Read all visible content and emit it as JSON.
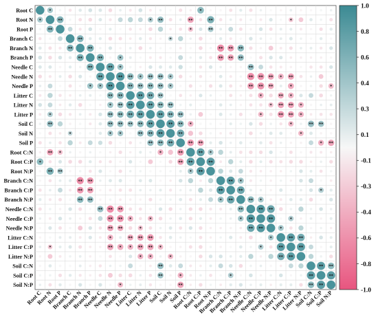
{
  "chart_data": {
    "type": "heatmap",
    "style": "circle-correlogram",
    "grid": true,
    "legend": "right",
    "variables": [
      "Root C",
      "Root N",
      "Root P",
      "Branch C",
      "Branch N",
      "Branch P",
      "Needle C",
      "Needle N",
      "Needle P",
      "Litter C",
      "Litter N",
      "Litter P",
      "Soil C",
      "Soil N",
      "Soil P",
      "Root C:N",
      "Root C:P",
      "Root N:P",
      "Branch C:N",
      "Branch C:P",
      "Branch N:P",
      "Needle C:N",
      "Needle C:P",
      "Needle N:P",
      "Litter C:N",
      "Litter C:P",
      "Litter N:P",
      "Soil C:N",
      "Soil C:P",
      "Soil N:P"
    ],
    "colorbar": {
      "ticks": [
        1.0,
        0.8,
        0.6,
        0.4,
        0.3,
        0.1,
        -0.1,
        -0.3,
        -0.4,
        -0.6,
        -0.8,
        -1.0
      ],
      "tick_labels": [
        "1.0",
        "0.8",
        "0.6",
        "0.4",
        "0.3",
        "0.1",
        "-0.1",
        "-0.3",
        "-0.4",
        "-0.6",
        "-0.8",
        "-1.0"
      ],
      "color_positive": "#3b8a93",
      "color_neutral": "#f7f7f7",
      "color_negative": "#e8557f"
    },
    "significance_marks": [
      "*",
      "**"
    ],
    "correlations": [
      {
        "a": 0,
        "b": 1,
        "r": 0.45,
        "sig": "*"
      },
      {
        "a": 0,
        "b": 16,
        "r": 0.6,
        "sig": "*"
      },
      {
        "a": 0,
        "b": 5,
        "r": 0.2,
        "sig": ""
      },
      {
        "a": 1,
        "b": 2,
        "r": 0.65,
        "sig": "**"
      },
      {
        "a": 1,
        "b": 12,
        "r": 0.55,
        "sig": "**"
      },
      {
        "a": 1,
        "b": 11,
        "r": 0.4,
        "sig": "*"
      },
      {
        "a": 1,
        "b": 15,
        "r": -0.55,
        "sig": "**"
      },
      {
        "a": 1,
        "b": 17,
        "r": 0.7,
        "sig": "**"
      },
      {
        "a": 1,
        "b": 9,
        "r": 0.35,
        "sig": ""
      },
      {
        "a": 1,
        "b": 8,
        "r": 0.3,
        "sig": ""
      },
      {
        "a": 1,
        "b": 10,
        "r": 0.3,
        "sig": ""
      },
      {
        "a": 1,
        "b": 25,
        "r": -0.3,
        "sig": "*"
      },
      {
        "a": 1,
        "b": 26,
        "r": -0.3,
        "sig": ""
      },
      {
        "a": 2,
        "b": 17,
        "r": 0.45,
        "sig": "**"
      },
      {
        "a": 2,
        "b": 12,
        "r": 0.35,
        "sig": ""
      },
      {
        "a": 2,
        "b": 15,
        "r": -0.35,
        "sig": "*"
      },
      {
        "a": 2,
        "b": 3,
        "r": 0.3,
        "sig": ""
      },
      {
        "a": 2,
        "b": 19,
        "r": 0.3,
        "sig": ""
      },
      {
        "a": 3,
        "b": 4,
        "r": 0.65,
        "sig": "**"
      },
      {
        "a": 3,
        "b": 14,
        "r": 0.35,
        "sig": ""
      },
      {
        "a": 3,
        "b": 13,
        "r": 0.3,
        "sig": "*"
      },
      {
        "a": 4,
        "b": 5,
        "r": 0.7,
        "sig": "**"
      },
      {
        "a": 4,
        "b": 18,
        "r": -0.7,
        "sig": "**"
      },
      {
        "a": 4,
        "b": 19,
        "r": -0.6,
        "sig": "**"
      },
      {
        "a": 4,
        "b": 20,
        "r": 0.6,
        "sig": "**"
      },
      {
        "a": 4,
        "b": 23,
        "r": -0.3,
        "sig": ""
      },
      {
        "a": 5,
        "b": 6,
        "r": 0.7,
        "sig": "**"
      },
      {
        "a": 5,
        "b": 8,
        "r": 0.5,
        "sig": "*"
      },
      {
        "a": 5,
        "b": 14,
        "r": 0.3,
        "sig": ""
      },
      {
        "a": 5,
        "b": 18,
        "r": -0.6,
        "sig": "**"
      },
      {
        "a": 5,
        "b": 19,
        "r": -0.55,
        "sig": "**"
      },
      {
        "a": 5,
        "b": 20,
        "r": 0.55,
        "sig": "**"
      },
      {
        "a": 6,
        "b": 7,
        "r": 0.85,
        "sig": "**"
      },
      {
        "a": 6,
        "b": 8,
        "r": 0.5,
        "sig": "*"
      },
      {
        "a": 6,
        "b": 21,
        "r": 0.55,
        "sig": "**"
      },
      {
        "a": 6,
        "b": 22,
        "r": 0.3,
        "sig": ""
      },
      {
        "a": 6,
        "b": 14,
        "r": 0.25,
        "sig": ""
      },
      {
        "a": 7,
        "b": 8,
        "r": 0.95,
        "sig": "**"
      },
      {
        "a": 7,
        "b": 9,
        "r": 0.6,
        "sig": "**"
      },
      {
        "a": 7,
        "b": 11,
        "r": 0.55,
        "sig": "**"
      },
      {
        "a": 7,
        "b": 12,
        "r": 0.55,
        "sig": "**"
      },
      {
        "a": 7,
        "b": 13,
        "r": 0.45,
        "sig": "*"
      },
      {
        "a": 7,
        "b": 10,
        "r": 0.5,
        "sig": "*"
      },
      {
        "a": 7,
        "b": 21,
        "r": -0.7,
        "sig": "**"
      },
      {
        "a": 7,
        "b": 22,
        "r": -0.65,
        "sig": "**"
      },
      {
        "a": 7,
        "b": 23,
        "r": -0.55,
        "sig": "**"
      },
      {
        "a": 7,
        "b": 24,
        "r": -0.45,
        "sig": "*"
      },
      {
        "a": 7,
        "b": 25,
        "r": -0.55,
        "sig": "**"
      },
      {
        "a": 7,
        "b": 28,
        "r": -0.3,
        "sig": ""
      },
      {
        "a": 8,
        "b": 9,
        "r": 0.65,
        "sig": "**"
      },
      {
        "a": 8,
        "b": 10,
        "r": 0.55,
        "sig": "**"
      },
      {
        "a": 8,
        "b": 11,
        "r": 0.6,
        "sig": "**"
      },
      {
        "a": 8,
        "b": 12,
        "r": 0.55,
        "sig": "**"
      },
      {
        "a": 8,
        "b": 13,
        "r": 0.45,
        "sig": "*"
      },
      {
        "a": 8,
        "b": 21,
        "r": -0.6,
        "sig": "**"
      },
      {
        "a": 8,
        "b": 22,
        "r": -0.65,
        "sig": "**"
      },
      {
        "a": 8,
        "b": 23,
        "r": -0.5,
        "sig": "**"
      },
      {
        "a": 8,
        "b": 25,
        "r": -0.5,
        "sig": "*"
      },
      {
        "a": 8,
        "b": 29,
        "r": -0.4,
        "sig": "*"
      },
      {
        "a": 9,
        "b": 10,
        "r": 0.9,
        "sig": "**"
      },
      {
        "a": 9,
        "b": 11,
        "r": 0.75,
        "sig": "**"
      },
      {
        "a": 9,
        "b": 12,
        "r": 0.5,
        "sig": "**"
      },
      {
        "a": 9,
        "b": 22,
        "r": -0.45,
        "sig": "*"
      },
      {
        "a": 9,
        "b": 24,
        "r": -0.5,
        "sig": "**"
      },
      {
        "a": 9,
        "b": 25,
        "r": -0.45,
        "sig": "*"
      },
      {
        "a": 9,
        "b": 27,
        "r": 0.3,
        "sig": ""
      },
      {
        "a": 10,
        "b": 11,
        "r": 0.85,
        "sig": "**"
      },
      {
        "a": 10,
        "b": 12,
        "r": 0.6,
        "sig": "**"
      },
      {
        "a": 10,
        "b": 13,
        "r": 0.55,
        "sig": "**"
      },
      {
        "a": 10,
        "b": 23,
        "r": -0.35,
        "sig": "*"
      },
      {
        "a": 10,
        "b": 24,
        "r": -0.55,
        "sig": "**"
      },
      {
        "a": 10,
        "b": 25,
        "r": -0.55,
        "sig": "**"
      },
      {
        "a": 10,
        "b": 26,
        "r": -0.45,
        "sig": "*"
      },
      {
        "a": 11,
        "b": 12,
        "r": 0.85,
        "sig": "**"
      },
      {
        "a": 11,
        "b": 13,
        "r": 0.65,
        "sig": "**"
      },
      {
        "a": 11,
        "b": 14,
        "r": 0.55,
        "sig": "**"
      },
      {
        "a": 11,
        "b": 24,
        "r": -0.6,
        "sig": "**"
      },
      {
        "a": 11,
        "b": 25,
        "r": -0.55,
        "sig": "**"
      },
      {
        "a": 11,
        "b": 26,
        "r": -0.45,
        "sig": "*"
      },
      {
        "a": 11,
        "b": 22,
        "r": -0.4,
        "sig": "*"
      },
      {
        "a": 11,
        "b": 16,
        "r": -0.3,
        "sig": ""
      },
      {
        "a": 12,
        "b": 13,
        "r": 0.9,
        "sig": "**"
      },
      {
        "a": 12,
        "b": 14,
        "r": 0.6,
        "sig": "**"
      },
      {
        "a": 12,
        "b": 15,
        "r": -0.45,
        "sig": "*"
      },
      {
        "a": 12,
        "b": 27,
        "r": 0.55,
        "sig": "**"
      },
      {
        "a": 12,
        "b": 28,
        "r": 0.5,
        "sig": "**"
      },
      {
        "a": 12,
        "b": 25,
        "r": -0.4,
        "sig": "*"
      },
      {
        "a": 13,
        "b": 14,
        "r": 0.75,
        "sig": "**"
      },
      {
        "a": 13,
        "b": 26,
        "r": -0.4,
        "sig": "*"
      },
      {
        "a": 13,
        "b": 15,
        "r": -0.35,
        "sig": ""
      },
      {
        "a": 14,
        "b": 15,
        "r": -0.6,
        "sig": "**"
      },
      {
        "a": 14,
        "b": 16,
        "r": -0.55,
        "sig": "**"
      },
      {
        "a": 14,
        "b": 28,
        "r": -0.45,
        "sig": "*"
      },
      {
        "a": 14,
        "b": 29,
        "r": -0.55,
        "sig": "**"
      },
      {
        "a": 14,
        "b": 27,
        "r": 0.3,
        "sig": ""
      },
      {
        "a": 15,
        "b": 16,
        "r": 0.85,
        "sig": "**"
      },
      {
        "a": 15,
        "b": 17,
        "r": 0.45,
        "sig": "*"
      },
      {
        "a": 15,
        "b": 18,
        "r": 0.35,
        "sig": ""
      },
      {
        "a": 16,
        "b": 17,
        "r": 0.9,
        "sig": "**"
      },
      {
        "a": 16,
        "b": 19,
        "r": 0.35,
        "sig": ""
      },
      {
        "a": 17,
        "b": 18,
        "r": 0.35,
        "sig": ""
      },
      {
        "a": 17,
        "b": 20,
        "r": 0.3,
        "sig": ""
      },
      {
        "a": 18,
        "b": 19,
        "r": 0.9,
        "sig": "**"
      },
      {
        "a": 18,
        "b": 20,
        "r": 0.5,
        "sig": "*"
      },
      {
        "a": 18,
        "b": 27,
        "r": 0.3,
        "sig": ""
      },
      {
        "a": 19,
        "b": 20,
        "r": 0.8,
        "sig": "**"
      },
      {
        "a": 19,
        "b": 28,
        "r": 0.4,
        "sig": "*"
      },
      {
        "a": 20,
        "b": 21,
        "r": 0.6,
        "sig": "**"
      },
      {
        "a": 20,
        "b": 22,
        "r": 0.45,
        "sig": "*"
      },
      {
        "a": 21,
        "b": 22,
        "r": 0.95,
        "sig": "**"
      },
      {
        "a": 21,
        "b": 23,
        "r": 0.8,
        "sig": "**"
      },
      {
        "a": 21,
        "b": 26,
        "r": 0.35,
        "sig": ""
      },
      {
        "a": 22,
        "b": 23,
        "r": 0.95,
        "sig": "**"
      },
      {
        "a": 22,
        "b": 25,
        "r": 0.4,
        "sig": "*"
      },
      {
        "a": 23,
        "b": 24,
        "r": 0.45,
        "sig": "*"
      },
      {
        "a": 23,
        "b": 26,
        "r": 0.35,
        "sig": ""
      },
      {
        "a": 24,
        "b": 25,
        "r": 0.9,
        "sig": "**"
      },
      {
        "a": 24,
        "b": 26,
        "r": 0.75,
        "sig": "**"
      },
      {
        "a": 25,
        "b": 26,
        "r": 0.9,
        "sig": "**"
      },
      {
        "a": 25,
        "b": 27,
        "r": 0.3,
        "sig": ""
      },
      {
        "a": 26,
        "b": 27,
        "r": 0.35,
        "sig": ""
      },
      {
        "a": 27,
        "b": 28,
        "r": 0.9,
        "sig": "**"
      },
      {
        "a": 27,
        "b": 29,
        "r": 0.6,
        "sig": "**"
      },
      {
        "a": 28,
        "b": 29,
        "r": 0.9,
        "sig": "**"
      }
    ]
  }
}
